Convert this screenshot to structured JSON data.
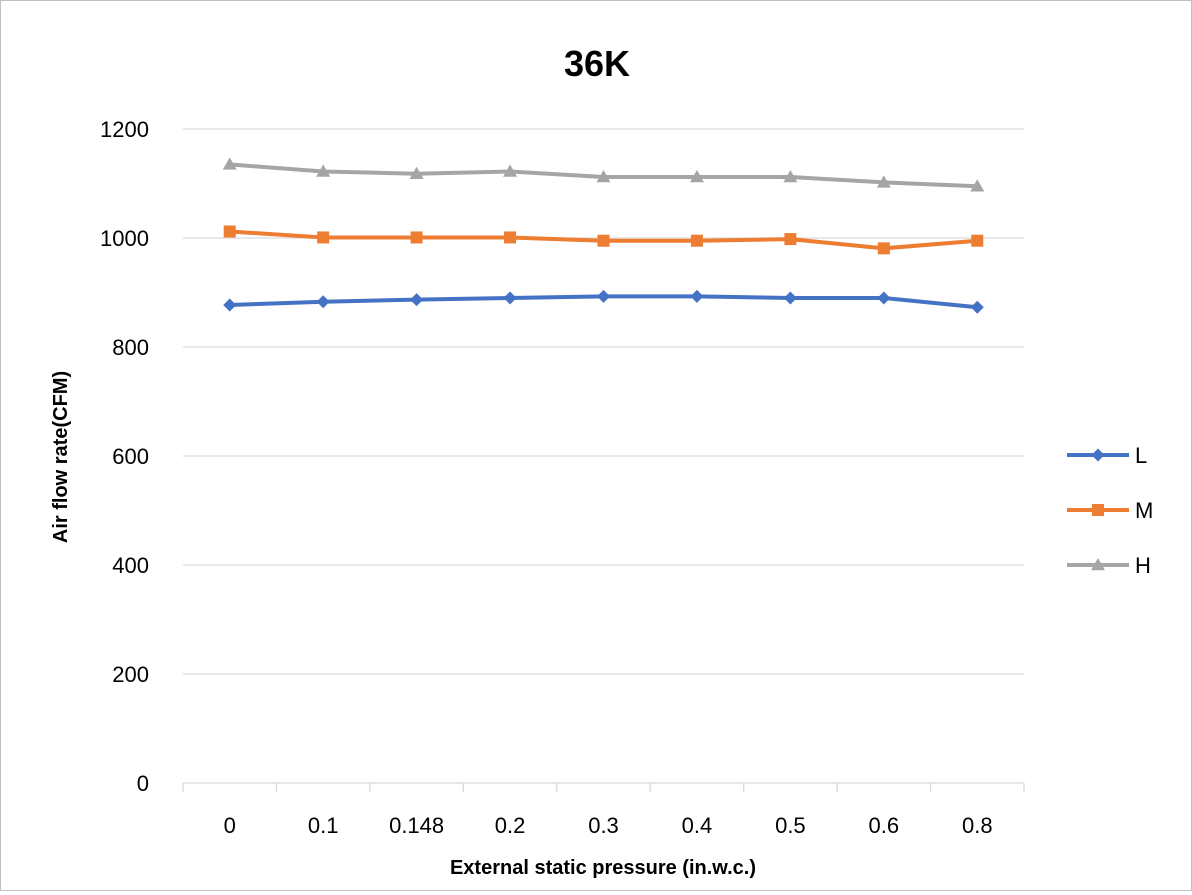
{
  "chart_data": {
    "type": "line",
    "title": "36K",
    "xlabel": "External static pressure (in.w.c.)",
    "ylabel": "Air flow rate(CFM)",
    "categories": [
      "0",
      "0.1",
      "0.148",
      "0.2",
      "0.3",
      "0.4",
      "0.5",
      "0.6",
      "0.8"
    ],
    "y_ticks": [
      0,
      200,
      400,
      600,
      800,
      1000,
      1200
    ],
    "ylim": [
      0,
      1200
    ],
    "grid": true,
    "legend_position": "right",
    "series": [
      {
        "name": "L",
        "color": "#4472c4",
        "marker": "diamond",
        "values": [
          877,
          883,
          887,
          890,
          893,
          893,
          890,
          890,
          873
        ]
      },
      {
        "name": "M",
        "color": "#ed7d31",
        "marker": "square",
        "values": [
          1012,
          1001,
          1001,
          1001,
          995,
          995,
          998,
          981,
          995
        ]
      },
      {
        "name": "H",
        "color": "#a5a5a5",
        "marker": "triangle",
        "values": [
          1135,
          1122,
          1118,
          1122,
          1112,
          1112,
          1112,
          1102,
          1095
        ]
      }
    ]
  }
}
